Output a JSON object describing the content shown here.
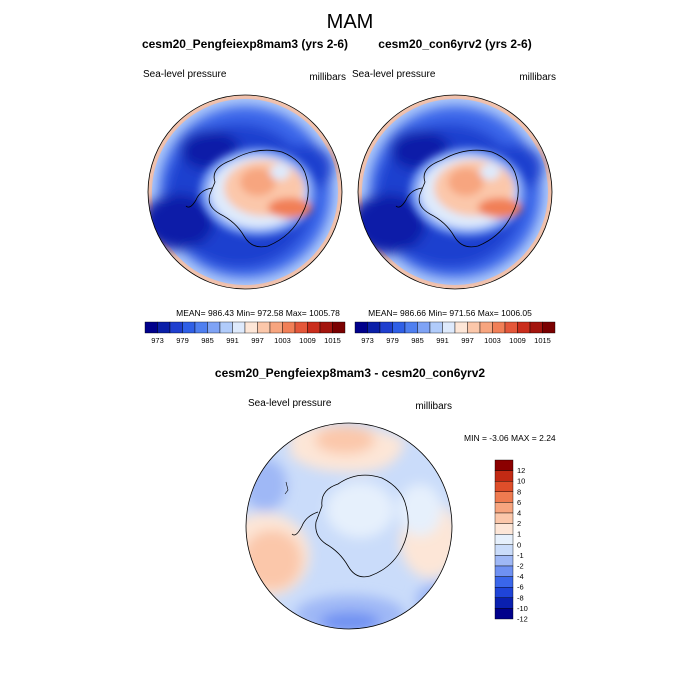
{
  "page": {
    "title": "MAM"
  },
  "colors": {
    "slp_scale": [
      "#00008b",
      "#0a1fa8",
      "#1f3fcf",
      "#2f5fe6",
      "#4f7ff0",
      "#7fa3f5",
      "#b0cbfa",
      "#deeafc",
      "#fde6d7",
      "#fbc7aa",
      "#f7a57f",
      "#f17f57",
      "#e4573a",
      "#ca2d1c",
      "#a3140d",
      "#7a0000"
    ],
    "diff_scale": [
      "#00008b",
      "#0a20b0",
      "#1f44d8",
      "#3a66ea",
      "#6f91f2",
      "#9fb8f6",
      "#cadcfa",
      "#e6f0fc",
      "#fde6d7",
      "#fbc7aa",
      "#f7a57f",
      "#ef7b50",
      "#de4e2a",
      "#c22a14",
      "#8b0000"
    ],
    "land_outline": "#000000"
  },
  "chart_data": [
    {
      "type": "heatmap",
      "panel": "top-left",
      "title": "cesm20_Pengfeiexp8mam3 (yrs 2-6)",
      "left_label": "Sea-level pressure",
      "right_label": "millibars",
      "stats": "MEAN= 986.43  Min= 972.58  Max= 1005.78",
      "colorbar_ticks": [
        "973",
        "979",
        "985",
        "991",
        "997",
        "1003",
        "1009",
        "1015"
      ]
    },
    {
      "type": "heatmap",
      "panel": "top-right",
      "title": "cesm20_con6yrv2 (yrs 2-6)",
      "left_label": "Sea-level pressure",
      "right_label": "millibars",
      "stats": "MEAN= 986.66  Min= 971.56  Max= 1006.05",
      "colorbar_ticks": [
        "973",
        "979",
        "985",
        "991",
        "997",
        "1003",
        "1009",
        "1015"
      ]
    },
    {
      "type": "heatmap",
      "panel": "bottom",
      "title": "cesm20_Pengfeiexp8mam3 - cesm20_con6yrv2",
      "left_label": "Sea-level pressure",
      "right_label": "millibars",
      "stats": "MIN =  -3.06 MAX =   2.24",
      "colorbar_ticks": [
        "12",
        "10",
        "8",
        "6",
        "4",
        "2",
        "1",
        "0",
        "-1",
        "-2",
        "-4",
        "-6",
        "-8",
        "-10",
        "-12"
      ]
    }
  ]
}
